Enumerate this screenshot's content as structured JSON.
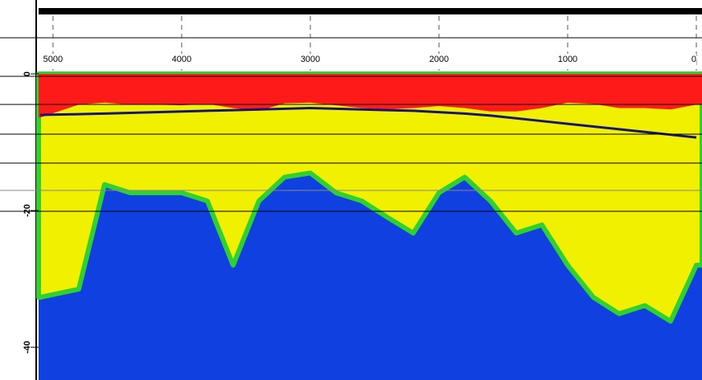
{
  "chart_data": {
    "type": "section",
    "x": [
      5100,
      4800,
      4600,
      4400,
      4200,
      4000,
      3800,
      3600,
      3400,
      3200,
      3000,
      2800,
      2600,
      2400,
      2200,
      2000,
      1800,
      1600,
      1400,
      1200,
      1000,
      800,
      600,
      400,
      200,
      0
    ],
    "series": [
      {
        "color": "#ff1a1a",
        "values": [
          -6.4,
          -4.5,
          -4.2,
          -4.5,
          -4.5,
          -4.6,
          -4.4,
          -5,
          -5.4,
          -4.3,
          -4.2,
          -4.6,
          -5,
          -5.2,
          -5,
          -4.7,
          -5,
          -5.5,
          -5.5,
          -5,
          -4.2,
          -4.4,
          -5,
          -5,
          -5.2,
          -4.5
        ]
      },
      {
        "color": "#f0f000",
        "values": [
          -32.7,
          -31.5,
          -16.2,
          -17.4,
          -17.4,
          -17.4,
          -18.6,
          -28,
          -18.6,
          -15.1,
          -14.5,
          -17.4,
          -18.6,
          -21,
          -23.3,
          -17.4,
          -15.1,
          -18.6,
          -23.3,
          -22.1,
          -28,
          -32.7,
          -35.1,
          -33.9,
          -36.2,
          -28
        ]
      },
      {
        "color": "#14147a",
        "values": [
          -6,
          -5.9,
          -5.8,
          -5.7,
          -5.6,
          -5.5,
          -5.4,
          -5.3,
          -5.2,
          -5.1,
          -5,
          -5.1,
          -5.2,
          -5.3,
          -5.4,
          -5.6,
          -5.8,
          -6.1,
          -6.5,
          -6.9,
          -7.3,
          -7.7,
          -8.1,
          -8.5,
          -8.9,
          -9.3
        ]
      }
    ],
    "fill_color": "#1040e0",
    "xlim": [
      5112,
      -44
    ],
    "xticks": [
      5000,
      4000,
      3000,
      2000,
      1000,
      0
    ],
    "ylim": [
      0,
      -44.8
    ],
    "yticks": [
      0,
      -20,
      -40
    ]
  }
}
